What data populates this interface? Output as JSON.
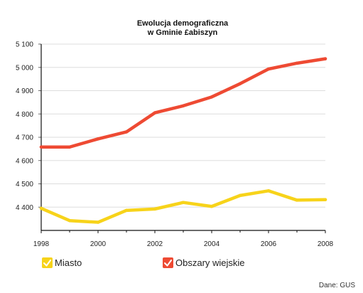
{
  "chart_data": {
    "type": "line",
    "title": [
      "Ewolucja demograficzna",
      "w Gminie £abiszyn"
    ],
    "x": [
      1998,
      1999,
      2000,
      2001,
      2002,
      2003,
      2004,
      2005,
      2006,
      2007,
      2008
    ],
    "x_ticks": [
      1998,
      2000,
      2002,
      2004,
      2006,
      2008
    ],
    "x_tick_labels": [
      "1998",
      "2000",
      "2002",
      "2004",
      "2006",
      "2008"
    ],
    "y_ticks": [
      4400,
      4500,
      4600,
      4700,
      4800,
      4900,
      5000,
      5100
    ],
    "y_tick_labels": [
      "4 400",
      "4 500",
      "4 600",
      "4 700",
      "4 800",
      "4 900",
      "5 000",
      "5 100"
    ],
    "xlim": [
      1998,
      2008
    ],
    "ylim": [
      4300,
      5100
    ],
    "grid": "horizontal",
    "legend_position": "bottom",
    "series": [
      {
        "name": "Miasto",
        "color": "#f7d31a",
        "values": [
          4395,
          4342,
          4335,
          4386,
          4392,
          4420,
          4403,
          4450,
          4470,
          4430,
          4432
        ]
      },
      {
        "name": "Obszary wiejskie",
        "color": "#ee4a33",
        "values": [
          4658,
          4658,
          4693,
          4723,
          4805,
          4835,
          4873,
          4930,
          4993,
          5018,
          5037
        ]
      }
    ],
    "source": "Dane: GUS"
  }
}
